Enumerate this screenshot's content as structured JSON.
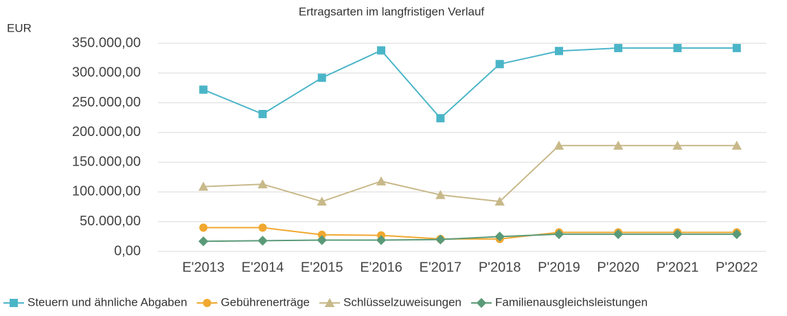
{
  "chart_data": {
    "type": "line",
    "title": "Ertragsarten im langfristigen Verlauf",
    "y_label": "EUR",
    "categories": [
      "E'2013",
      "E'2014",
      "E'2015",
      "E'2016",
      "E'2017",
      "P'2018",
      "P'2019",
      "P'2020",
      "P'2021",
      "P'2022"
    ],
    "series": [
      {
        "name": "Steuern und ähnliche Abgaben",
        "color": "#4bb5c8",
        "marker": "square",
        "values": [
          272000,
          231000,
          292000,
          338000,
          224000,
          315000,
          337000,
          342000,
          342000,
          342000
        ]
      },
      {
        "name": "Gebührenerträge",
        "color": "#f0a830",
        "marker": "circle",
        "values": [
          40000,
          40000,
          28000,
          27000,
          21000,
          21000,
          32000,
          32000,
          32000,
          32000
        ]
      },
      {
        "name": "Schlüsselzuweisungen",
        "color": "#c8b98a",
        "marker": "triangle",
        "values": [
          109000,
          113000,
          84000,
          118000,
          95000,
          84000,
          178000,
          178000,
          178000,
          178000
        ]
      },
      {
        "name": "Familienausgleichsleistungen",
        "color": "#5a9a78",
        "marker": "diamond",
        "values": [
          17000,
          18000,
          19000,
          19000,
          20000,
          25000,
          29000,
          29000,
          29000,
          29000
        ]
      }
    ],
    "ylim": [
      0,
      350000
    ],
    "yticks": [
      {
        "value": 0,
        "label": "0,00"
      },
      {
        "value": 50000,
        "label": "50.000,00"
      },
      {
        "value": 100000,
        "label": "100.000,00"
      },
      {
        "value": 150000,
        "label": "150.000,00"
      },
      {
        "value": 200000,
        "label": "200.000,00"
      },
      {
        "value": 250000,
        "label": "250.000,00"
      },
      {
        "value": 300000,
        "label": "300.000,00"
      },
      {
        "value": 350000,
        "label": "350.000,00"
      }
    ],
    "grid": true,
    "legend": "bottom"
  }
}
